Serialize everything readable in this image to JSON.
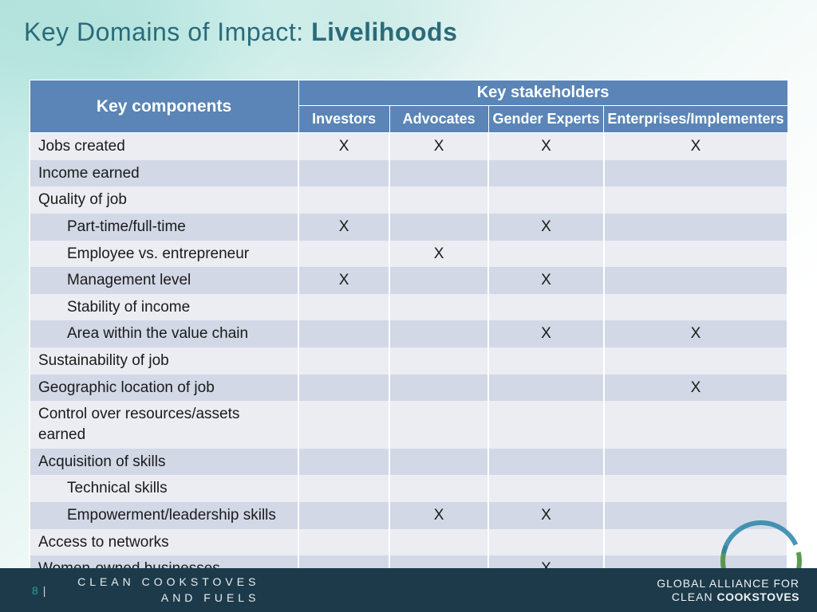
{
  "title_prefix": "Key Domains of Impact: ",
  "title_bold": "Livelihoods",
  "colors": {
    "title": "#2a6b7a",
    "header_bg": "#5a85b6",
    "header_fg": "#ffffff",
    "stripe_a": "#ebedf3",
    "stripe_b": "#d2d8e6",
    "footer_bg": "#1c3a4a",
    "accent": "#2aa39a",
    "ring_green": "#4d8f3f",
    "ring_blue": "#2a84a8"
  },
  "table": {
    "key_components_header": "Key components",
    "stakeholders_header": "Key stakeholders",
    "stakeholders": [
      "Investors",
      "Advocates",
      "Gender Experts",
      "Enterprises/Implementers"
    ],
    "col_widths_pct": [
      38,
      13,
      14,
      18,
      17
    ],
    "rows": [
      {
        "label": "Jobs created",
        "indent": false,
        "marks": [
          "X",
          "X",
          "X",
          "X"
        ]
      },
      {
        "label": "Income earned",
        "indent": false,
        "marks": [
          "",
          "",
          "",
          ""
        ]
      },
      {
        "label": "Quality of job",
        "indent": false,
        "marks": [
          "",
          "",
          "",
          ""
        ]
      },
      {
        "label": "Part-time/full-time",
        "indent": true,
        "marks": [
          "X",
          "",
          "X",
          ""
        ]
      },
      {
        "label": "Employee vs. entrepreneur",
        "indent": true,
        "marks": [
          "",
          "X",
          "",
          ""
        ]
      },
      {
        "label": "Management level",
        "indent": true,
        "marks": [
          "X",
          "",
          "X",
          ""
        ]
      },
      {
        "label": "Stability of income",
        "indent": true,
        "marks": [
          "",
          "",
          "",
          ""
        ]
      },
      {
        "label": "Area within the value chain",
        "indent": true,
        "marks": [
          "",
          "",
          "X",
          "X"
        ]
      },
      {
        "label": "Sustainability of job",
        "indent": false,
        "marks": [
          "",
          "",
          "",
          ""
        ]
      },
      {
        "label": "Geographic location of job",
        "indent": false,
        "marks": [
          "",
          "",
          "",
          "X"
        ]
      },
      {
        "label": "Control over resources/assets earned",
        "indent": false,
        "marks": [
          "",
          "",
          "",
          ""
        ]
      },
      {
        "label": "Acquisition of skills",
        "indent": false,
        "marks": [
          "",
          "",
          "",
          ""
        ]
      },
      {
        "label": "Technical skills",
        "indent": true,
        "marks": [
          "",
          "",
          "",
          ""
        ]
      },
      {
        "label": "Empowerment/leadership skills",
        "indent": true,
        "marks": [
          "",
          "X",
          "X",
          ""
        ]
      },
      {
        "label": "Access to networks",
        "indent": false,
        "marks": [
          "",
          "",
          "",
          ""
        ]
      },
      {
        "label": "Women-owned businesses",
        "indent": false,
        "marks": [
          "",
          "",
          "X",
          ""
        ]
      }
    ]
  },
  "footer": {
    "page_number": "8",
    "separator": "|",
    "tagline": "CLEAN COOKSTOVES AND FUELS",
    "org_line1": "GLOBAL ALLIANCE FOR",
    "org_line2_prefix": "CLEAN ",
    "org_line2_bold": "COOKSTOVES"
  }
}
